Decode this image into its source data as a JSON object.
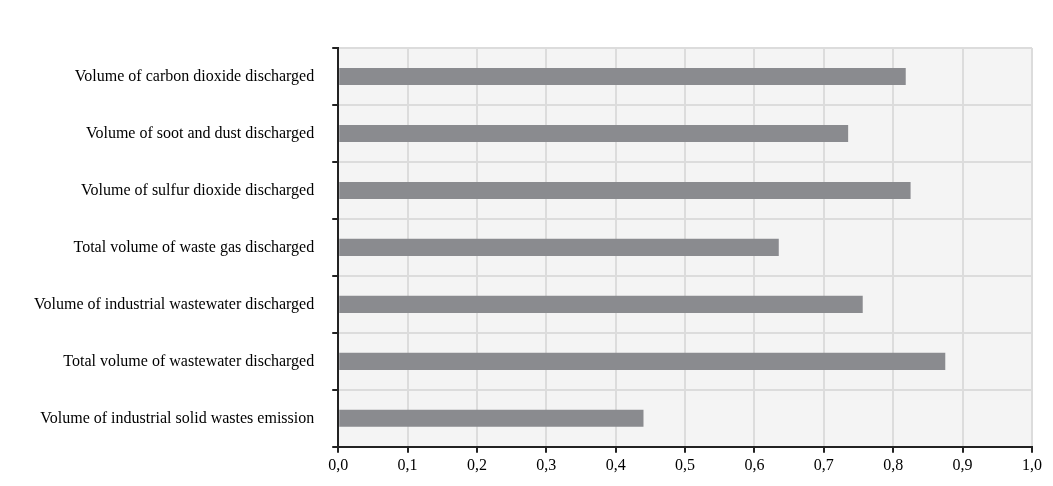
{
  "chart_data": {
    "type": "bar",
    "orientation": "horizontal",
    "categories": [
      "Volume of carbon dioxide discharged",
      "Volume of soot and dust discharged",
      "Volume of sulfur dioxide discharged",
      "Total volume of waste gas discharged",
      "Volume of industrial wastewater discharged",
      "Total volume of wastewater discharged",
      "Volume of industrial solid wastes emission"
    ],
    "values": [
      0.818,
      0.735,
      0.825,
      0.635,
      0.756,
      0.875,
      0.44
    ],
    "color": "#8a8b8f",
    "xlim": [
      0,
      1
    ],
    "xticks": [
      {
        "value": 0,
        "label": "0,0"
      },
      {
        "value": 0.1,
        "label": "0,1"
      },
      {
        "value": 0.2,
        "label": "0,2"
      },
      {
        "value": 0.3,
        "label": "0,3"
      },
      {
        "value": 0.4,
        "label": "0,4"
      },
      {
        "value": 0.5,
        "label": "0,5"
      },
      {
        "value": 0.6,
        "label": "0,6"
      },
      {
        "value": 0.7,
        "label": "0,7"
      },
      {
        "value": 0.8,
        "label": "0,8"
      },
      {
        "value": 0.9,
        "label": "0,9"
      },
      {
        "value": 1,
        "label": "1,0"
      }
    ],
    "grid": true
  }
}
